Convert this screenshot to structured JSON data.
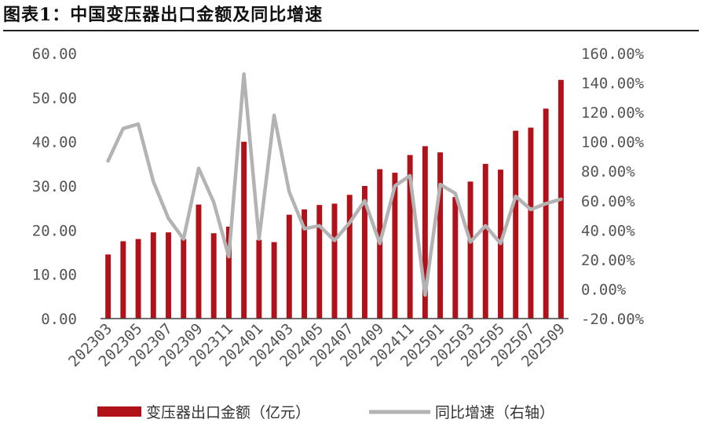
{
  "title": "图表1：中国变压器出口金额及同比增速",
  "chart_data": {
    "type": "bar",
    "categories": [
      "202303",
      "202304",
      "202305",
      "202306",
      "202307",
      "202308",
      "202309",
      "202310",
      "202311",
      "202312",
      "202401",
      "202402",
      "202403",
      "202404",
      "202405",
      "202406",
      "202407",
      "202408",
      "202409",
      "202410",
      "202411",
      "202412",
      "202501",
      "202502",
      "202503",
      "202504",
      "202505",
      "202506",
      "202507",
      "202508",
      "202509"
    ],
    "x_tick_labels": [
      "202303",
      "202305",
      "202307",
      "202309",
      "202311",
      "202401",
      "202403",
      "202405",
      "202407",
      "202409",
      "202411",
      "202501",
      "202503",
      "202505",
      "202507",
      "202509"
    ],
    "series": [
      {
        "name": "变压器出口金额（亿元）",
        "type": "bar",
        "axis": "left",
        "color": "#b11119",
        "values": [
          14.5,
          17.5,
          18.0,
          19.5,
          19.5,
          18.0,
          25.8,
          19.3,
          20.8,
          40.0,
          17.8,
          17.3,
          23.5,
          24.7,
          25.7,
          26.0,
          28.0,
          30.0,
          33.8,
          33.0,
          37.0,
          39.0,
          37.6,
          27.5,
          31.0,
          35.0,
          33.7,
          42.5,
          43.2,
          47.5,
          54.0
        ]
      },
      {
        "name": "同比增速（右轴）",
        "type": "line",
        "axis": "right",
        "color": "#b3b3b3",
        "values": [
          87,
          109,
          112,
          73,
          48,
          34,
          82,
          59,
          22,
          146,
          34,
          118,
          66,
          41,
          43,
          33,
          45,
          60,
          31,
          70,
          77,
          -4,
          71,
          65,
          32,
          43,
          31,
          63,
          54,
          58,
          61
        ]
      }
    ],
    "y_left": {
      "ylim": [
        0,
        60
      ],
      "ticks": [
        "0.00",
        "10.00",
        "20.00",
        "30.00",
        "40.00",
        "50.00",
        "60.00"
      ]
    },
    "y_right": {
      "ylim": [
        -20,
        160
      ],
      "ticks": [
        "-20.00%",
        "0.00%",
        "20.00%",
        "40.00%",
        "60.00%",
        "80.00%",
        "100.00%",
        "120.00%",
        "140.00%",
        "160.00%"
      ]
    },
    "legend_position": "bottom"
  }
}
